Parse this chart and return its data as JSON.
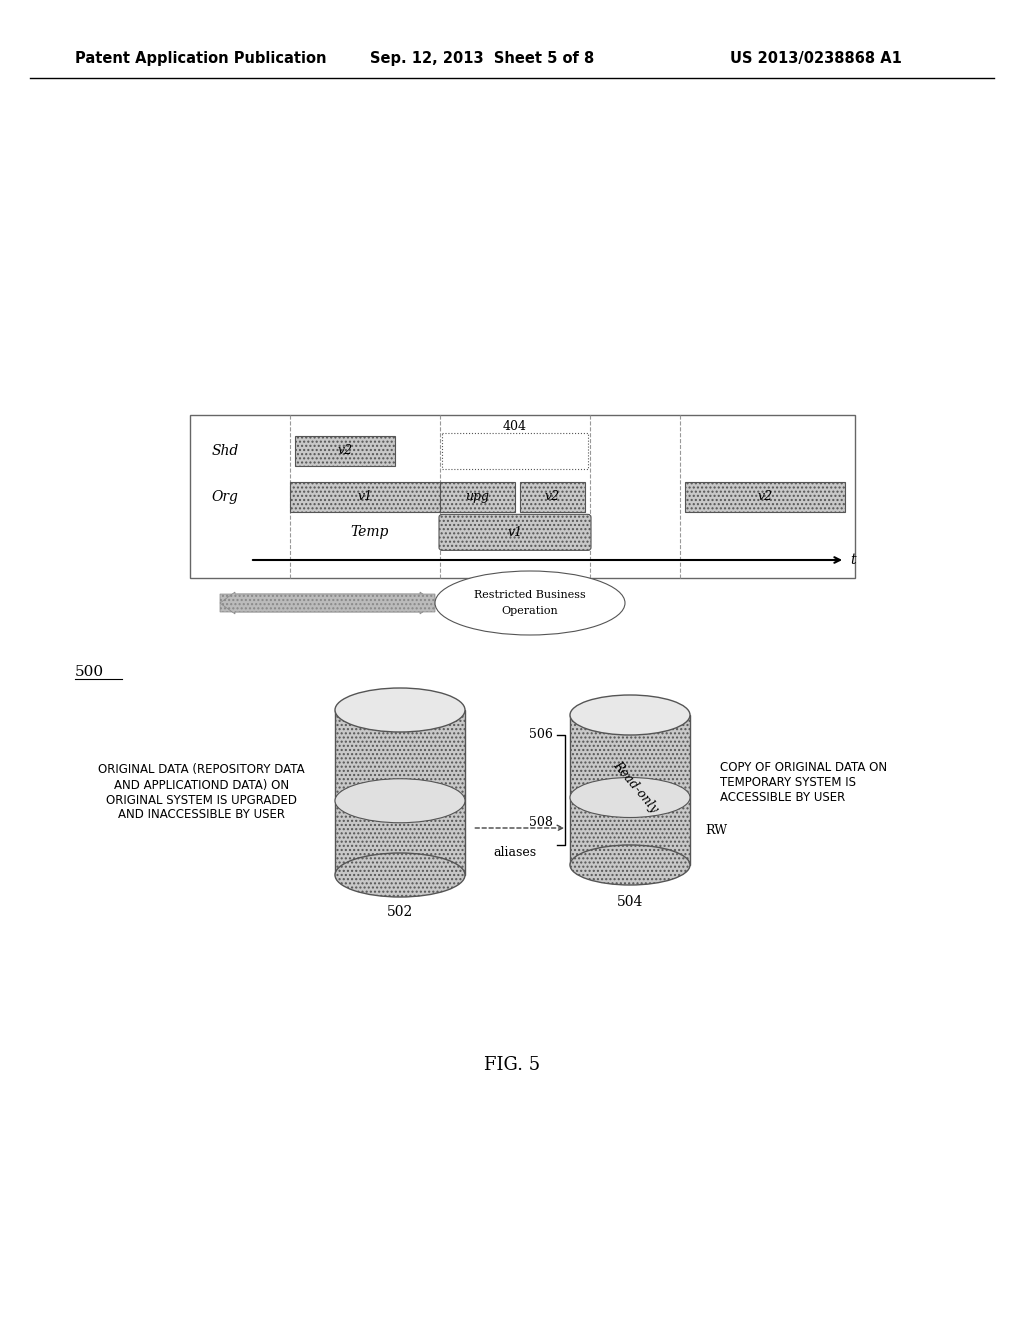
{
  "header_left": "Patent Application Publication",
  "header_mid": "Sep. 12, 2013  Sheet 5 of 8",
  "header_right": "US 2013/0238868 A1",
  "fig_label": "FIG. 5",
  "diagram_label": "500",
  "bg_color": "#ffffff"
}
